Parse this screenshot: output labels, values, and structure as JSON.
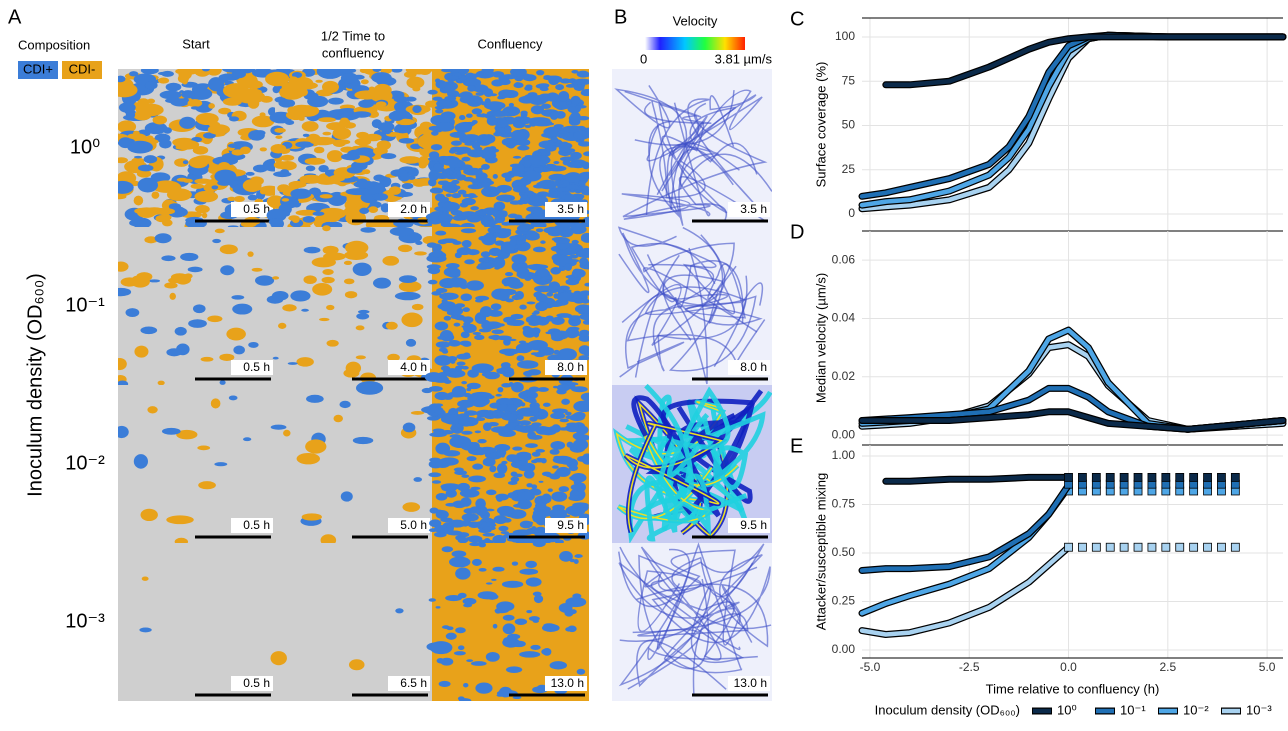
{
  "panel_a": {
    "label": "A",
    "composition_title": "Composition",
    "composition": [
      "CDI+",
      "CDI-"
    ],
    "columns": [
      "Start",
      [
        "1/2 Time to",
        "confluency"
      ],
      "Confluency"
    ],
    "y_label": "Inoculum density (OD₆₀₀)",
    "rows": [
      {
        "label": "10⁰",
        "times": [
          "0.5 h",
          "2.0 h",
          "3.5 h"
        ]
      },
      {
        "label": "10⁻¹",
        "times": [
          "0.5 h",
          "4.0 h",
          "8.0 h"
        ]
      },
      {
        "label": "10⁻²",
        "times": [
          "0.5 h",
          "5.0 h",
          "9.5 h"
        ]
      },
      {
        "label": "10⁻³",
        "times": [
          "0.5 h",
          "6.5 h",
          "13.0 h"
        ]
      }
    ]
  },
  "panel_b": {
    "label": "B",
    "colorbar_title": "Velocity",
    "colorbar_min": "0",
    "colorbar_max": "3.81 µm/s",
    "times": [
      "3.5 h",
      "8.0 h",
      "9.5 h",
      "13.0 h"
    ]
  },
  "legend_title": "Inoculum density (OD₆₀₀)",
  "chart_data": [
    {
      "type": "line",
      "panel": "C",
      "y_label": "Surface coverage (%)",
      "xlim": [
        -5.2,
        5.4
      ],
      "xticks": [
        {
          "value": -5,
          "label": "-5.0"
        },
        {
          "value": -2.5,
          "label": "-2.5"
        },
        {
          "value": 0,
          "label": "0.0"
        },
        {
          "value": 2.5,
          "label": "2.5"
        },
        {
          "value": 5,
          "label": "5.0"
        }
      ],
      "ylim": [
        -9.6,
        110.7
      ],
      "yticks": [
        0,
        25,
        50,
        75,
        100
      ],
      "grid": true,
      "x": [
        -5.2,
        -4.6,
        -4,
        -3,
        -2,
        -1.5,
        -1,
        -0.5,
        0,
        0.5,
        1,
        2.5,
        5.4
      ],
      "series": [
        {
          "name": "10⁰",
          "color": "#0b2a4a",
          "values": [
            null,
            73,
            73,
            75,
            83,
            88,
            93,
            97,
            99,
            100,
            100,
            100,
            100
          ]
        },
        {
          "name": "10⁻¹",
          "color": "#1f6fb4",
          "values": [
            10,
            12,
            15,
            20,
            28,
            38,
            55,
            80,
            95,
            100,
            101,
            100,
            100
          ]
        },
        {
          "name": "10⁻²",
          "color": "#4ea6e6",
          "values": [
            5,
            7,
            8,
            13,
            22,
            32,
            48,
            72,
            92,
            99,
            101,
            100,
            100
          ]
        },
        {
          "name": "10⁻³",
          "color": "#a8d2f0",
          "values": [
            3,
            4,
            5,
            8,
            15,
            25,
            40,
            65,
            88,
            99,
            101,
            100,
            100
          ]
        }
      ]
    },
    {
      "type": "line",
      "panel": "D",
      "y_label": "Median velocity (µm/s)",
      "xlim": [
        -5.2,
        5.4
      ],
      "xticks": [
        -5,
        -2.5,
        0,
        2.5,
        5
      ],
      "ylim": [
        -0.0034,
        0.07
      ],
      "yticks": [
        {
          "value": 0,
          "label": "0.00"
        },
        {
          "value": 0.02,
          "label": "0.02"
        },
        {
          "value": 0.04,
          "label": "0.04"
        },
        {
          "value": 0.06,
          "label": "0.06"
        }
      ],
      "grid": true,
      "x": [
        -5.2,
        -4,
        -3,
        -2,
        -1,
        -0.5,
        0,
        0.5,
        1,
        2,
        3,
        5.4
      ],
      "series": [
        {
          "name": "10⁰",
          "color": "#0b2a4a",
          "values": [
            0.005,
            0.005,
            0.005,
            0.006,
            0.007,
            0.008,
            0.008,
            0.006,
            0.004,
            0.003,
            0.002,
            0.005
          ]
        },
        {
          "name": "10⁻¹",
          "color": "#1f6fb4",
          "values": [
            0.005,
            0.006,
            0.007,
            0.008,
            0.012,
            0.016,
            0.016,
            0.013,
            0.008,
            0.003,
            0.002,
            0.005
          ]
        },
        {
          "name": "10⁻²",
          "color": "#4ea6e6",
          "values": [
            0.004,
            0.005,
            0.006,
            0.009,
            0.022,
            0.033,
            0.036,
            0.03,
            0.018,
            0.004,
            0.002,
            0.005
          ]
        },
        {
          "name": "10⁻³",
          "color": "#a8d2f0",
          "values": [
            0.003,
            0.004,
            0.006,
            0.01,
            0.021,
            0.03,
            0.031,
            0.027,
            0.017,
            0.005,
            0.002,
            0.004
          ]
        }
      ]
    },
    {
      "type": "line",
      "panel": "E",
      "y_label": "Attacker/susceptible mixing",
      "x_label": "Time relative to confluency (h)",
      "xlim": [
        -5.2,
        5.4
      ],
      "xticks": [
        {
          "value": -5,
          "label": "-5.0"
        },
        {
          "value": -2.5,
          "label": "-2.5"
        },
        {
          "value": 0,
          "label": "0.0"
        },
        {
          "value": 2.5,
          "label": "2.5"
        },
        {
          "value": 5,
          "label": "5.0"
        }
      ],
      "ylim": [
        -0.041,
        1.057
      ],
      "yticks": [
        {
          "value": 0,
          "label": "0.00"
        },
        {
          "value": 0.25,
          "label": "0.25"
        },
        {
          "value": 0.5,
          "label": "0.50"
        },
        {
          "value": 0.75,
          "label": "0.75"
        },
        {
          "value": 1,
          "label": "1.00"
        }
      ],
      "grid": true,
      "x": [
        -5.2,
        -4.6,
        -4,
        -3,
        -2,
        -1,
        -0.5,
        0
      ],
      "square_x": [
        0,
        0.35,
        0.7,
        1.05,
        1.4,
        1.75,
        2.1,
        2.45,
        2.8,
        3.15,
        3.5,
        3.85,
        4.2
      ],
      "series": [
        {
          "name": "10⁰",
          "color": "#0b2a4a",
          "values": [
            null,
            0.87,
            0.87,
            0.88,
            0.88,
            0.89,
            0.89,
            0.89
          ],
          "square_value": 0.89
        },
        {
          "name": "10⁻¹",
          "color": "#1f6fb4",
          "values": [
            0.41,
            0.42,
            0.42,
            0.43,
            0.48,
            0.6,
            0.7,
            0.85
          ],
          "square_value": 0.855
        },
        {
          "name": "10⁻²",
          "color": "#4ea6e6",
          "values": [
            0.19,
            0.24,
            0.28,
            0.34,
            0.42,
            0.58,
            0.7,
            0.84
          ],
          "square_value": 0.82
        },
        {
          "name": "10⁻³",
          "color": "#a8d2f0",
          "values": [
            0.1,
            0.08,
            0.09,
            0.14,
            0.22,
            0.35,
            0.44,
            0.53
          ],
          "square_value": 0.53
        }
      ]
    }
  ]
}
